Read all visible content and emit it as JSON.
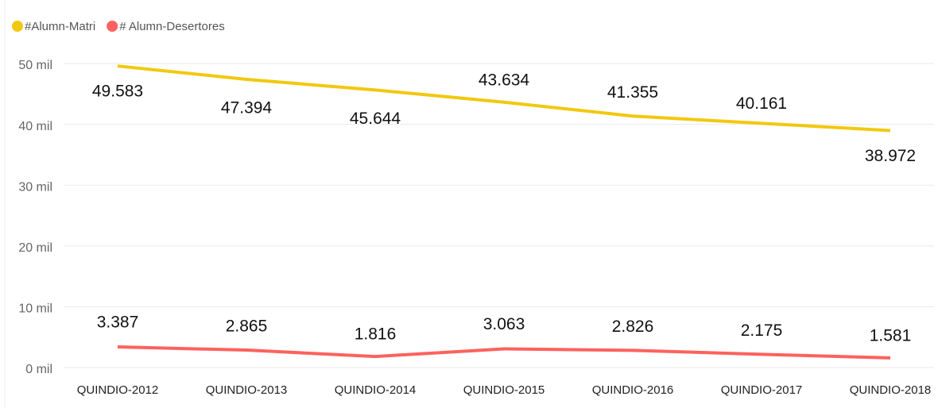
{
  "chart_data": {
    "type": "line",
    "categories": [
      "QUINDIO-2012",
      "QUINDIO-2013",
      "QUINDIO-2014",
      "QUINDIO-2015",
      "QUINDIO-2016",
      "QUINDIO-2017",
      "QUINDIO-2018"
    ],
    "series": [
      {
        "name": "#Alumn-Matri",
        "color": "#F2C80F",
        "values": [
          49583,
          47394,
          45644,
          43634,
          41355,
          40161,
          38972
        ],
        "value_labels": [
          "49.583",
          "47.394",
          "45.644",
          "43.634",
          "41.355",
          "40.161",
          "38.972"
        ]
      },
      {
        "name": "# Alumn-Desertores",
        "color": "#FD625E",
        "values": [
          3387,
          2865,
          1816,
          3063,
          2826,
          2175,
          1581
        ],
        "value_labels": [
          "3.387",
          "2.865",
          "1.816",
          "3.063",
          "2.826",
          "2.175",
          "1.581"
        ]
      }
    ],
    "ylim": [
      0,
      50000
    ],
    "yticks": [
      {
        "value": 0,
        "label": "0 mil"
      },
      {
        "value": 10000,
        "label": "10 mil"
      },
      {
        "value": 20000,
        "label": "20 mil"
      },
      {
        "value": 30000,
        "label": "30 mil"
      },
      {
        "value": 40000,
        "label": "40 mil"
      },
      {
        "value": 50000,
        "label": "50 mil"
      }
    ],
    "grid": true,
    "legend": "top-left"
  }
}
